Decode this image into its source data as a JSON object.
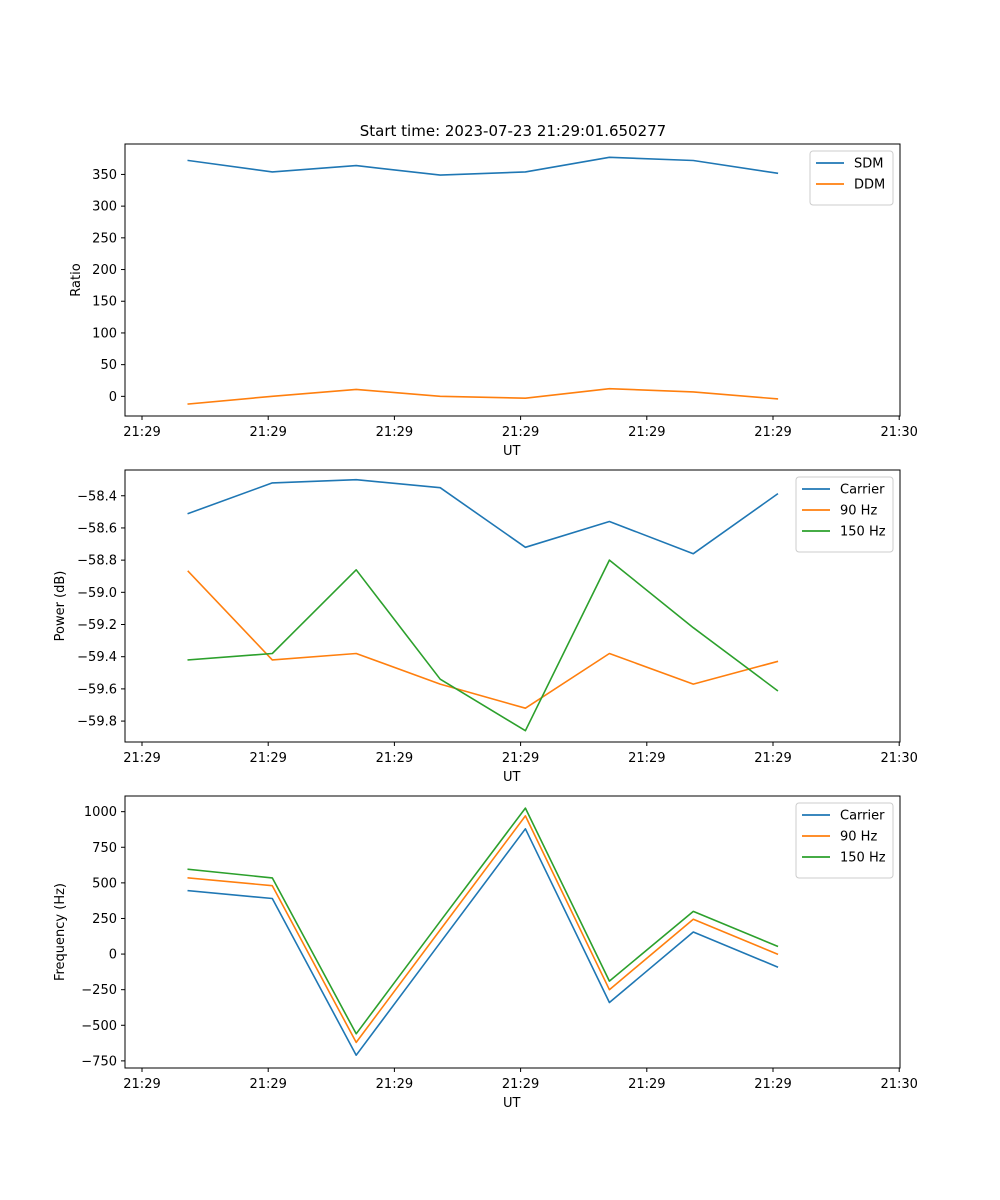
{
  "figure_title": "Start time: 2023-07-23 21:29:01.650277",
  "colors": {
    "blue": "#1f77b4",
    "orange": "#ff7f0e",
    "green": "#2ca02c"
  },
  "chart_data": [
    {
      "type": "line",
      "xlabel": "UT",
      "ylabel": "Ratio",
      "x_ticks": [
        "21:29",
        "21:29",
        "21:29",
        "21:29",
        "21:29",
        "21:29",
        "21:30"
      ],
      "xlim": [
        0,
        6
      ],
      "x": [
        0.49,
        1.14,
        1.79,
        2.44,
        3.1,
        3.75,
        4.4,
        5.05
      ],
      "ylim": [
        -31,
        398
      ],
      "y_ticks": [
        0,
        50,
        100,
        150,
        200,
        250,
        300,
        350
      ],
      "legend": "top-right",
      "series": [
        {
          "name": "SDM",
          "color": "#1f77b4",
          "values": [
            372,
            354,
            364,
            349,
            354,
            377,
            372,
            352
          ]
        },
        {
          "name": "DDM",
          "color": "#ff7f0e",
          "values": [
            -12,
            0,
            11,
            0,
            -3,
            12,
            7,
            -4
          ]
        }
      ]
    },
    {
      "type": "line",
      "xlabel": "UT",
      "ylabel": "Power (dB)",
      "x_ticks": [
        "21:29",
        "21:29",
        "21:29",
        "21:29",
        "21:29",
        "21:29",
        "21:30"
      ],
      "xlim": [
        0,
        6
      ],
      "x": [
        0.49,
        1.14,
        1.79,
        2.44,
        3.1,
        3.75,
        4.4,
        5.05
      ],
      "ylim": [
        -59.93,
        -58.24
      ],
      "y_ticks": [
        -59.8,
        -59.6,
        -59.4,
        -59.2,
        -59.0,
        -58.8,
        -58.6,
        -58.4
      ],
      "y_tick_labels": [
        "−59.8",
        "−59.6",
        "−59.4",
        "−59.2",
        "−59.0",
        "−58.8",
        "−58.6",
        "−58.4"
      ],
      "legend": "top-right",
      "series": [
        {
          "name": "Carrier",
          "color": "#1f77b4",
          "values": [
            -58.51,
            -58.32,
            -58.3,
            -58.35,
            -58.72,
            -58.56,
            -58.76,
            -58.39
          ]
        },
        {
          "name": "90 Hz",
          "color": "#ff7f0e",
          "values": [
            -58.87,
            -59.42,
            -59.38,
            -59.57,
            -59.72,
            -59.38,
            -59.57,
            -59.43
          ]
        },
        {
          "name": "150 Hz",
          "color": "#2ca02c",
          "values": [
            -59.42,
            -59.38,
            -58.86,
            -59.54,
            -59.86,
            -58.8,
            -59.22,
            -59.61
          ]
        }
      ]
    },
    {
      "type": "line",
      "xlabel": "UT",
      "ylabel": "Frequency (Hz)",
      "x_ticks": [
        "21:29",
        "21:29",
        "21:29",
        "21:29",
        "21:29",
        "21:29",
        "21:30"
      ],
      "xlim": [
        0,
        6
      ],
      "x": [
        0.49,
        1.14,
        1.79,
        2.44,
        3.1,
        3.75,
        4.4,
        5.05
      ],
      "ylim": [
        -800,
        1110
      ],
      "y_ticks": [
        -750,
        -500,
        -250,
        0,
        250,
        500,
        750,
        1000
      ],
      "y_tick_labels": [
        "−750",
        "−500",
        "−250",
        "0",
        "250",
        "500",
        "750",
        "1000"
      ],
      "legend": "top-right",
      "series": [
        {
          "name": "Carrier",
          "color": "#1f77b4",
          "values": [
            445,
            390,
            -710,
            80,
            880,
            -340,
            155,
            -90
          ]
        },
        {
          "name": "90 Hz",
          "color": "#ff7f0e",
          "values": [
            535,
            480,
            -620,
            170,
            970,
            -250,
            245,
            0
          ]
        },
        {
          "name": "150 Hz",
          "color": "#2ca02c",
          "values": [
            595,
            535,
            -560,
            230,
            1025,
            -190,
            300,
            55
          ]
        }
      ]
    }
  ]
}
